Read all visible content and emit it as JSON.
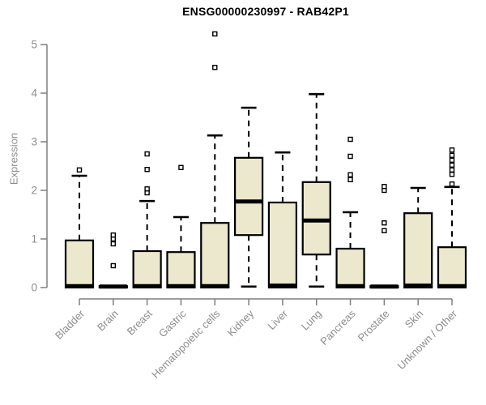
{
  "chart_data": {
    "type": "boxplot",
    "title": "ENSG00000230997 - RAB42P1",
    "ylabel": "Expression",
    "xlabel": "",
    "ylim": [
      0,
      5
    ],
    "yticks": [
      0,
      1,
      2,
      3,
      4,
      5
    ],
    "grid": false,
    "legend": false,
    "categories": [
      "Bladder",
      "Brain",
      "Breast",
      "Gastric",
      "Hematopoietic cells",
      "Kidney",
      "Liver",
      "Lung",
      "Pancreas",
      "Prostate",
      "Skin",
      "Unknown / Other"
    ],
    "series": [
      {
        "category": "Bladder",
        "whisker_low": 0,
        "q1": 0,
        "median": 0.03,
        "q3": 0.97,
        "whisker_high": 2.3,
        "outliers": [
          2.42
        ]
      },
      {
        "category": "Brain",
        "whisker_low": 0,
        "q1": 0,
        "median": 0.02,
        "q3": 0.03,
        "whisker_high": 0.03,
        "outliers": [
          0.45,
          0.9,
          1.0,
          1.08
        ]
      },
      {
        "category": "Breast",
        "whisker_low": 0,
        "q1": 0,
        "median": 0.03,
        "q3": 0.75,
        "whisker_high": 1.78,
        "outliers": [
          1.95,
          2.03,
          2.43,
          2.75
        ]
      },
      {
        "category": "Gastric",
        "whisker_low": 0,
        "q1": 0,
        "median": 0.03,
        "q3": 0.73,
        "whisker_high": 1.45,
        "outliers": [
          2.47
        ]
      },
      {
        "category": "Hematopoietic cells",
        "whisker_low": 0,
        "q1": 0,
        "median": 0.03,
        "q3": 1.33,
        "whisker_high": 3.13,
        "outliers": [
          4.53,
          5.22
        ]
      },
      {
        "category": "Kidney",
        "whisker_low": 0.02,
        "q1": 1.08,
        "median": 1.77,
        "q3": 2.67,
        "whisker_high": 3.7,
        "outliers": []
      },
      {
        "category": "Liver",
        "whisker_low": 0,
        "q1": 0,
        "median": 0.04,
        "q3": 1.75,
        "whisker_high": 2.78,
        "outliers": []
      },
      {
        "category": "Lung",
        "whisker_low": 0.02,
        "q1": 0.68,
        "median": 1.38,
        "q3": 2.17,
        "whisker_high": 3.98,
        "outliers": []
      },
      {
        "category": "Pancreas",
        "whisker_low": 0,
        "q1": 0,
        "median": 0.03,
        "q3": 0.8,
        "whisker_high": 1.55,
        "outliers": [
          2.22,
          2.32,
          2.7,
          3.05
        ]
      },
      {
        "category": "Prostate",
        "whisker_low": 0,
        "q1": 0,
        "median": 0.02,
        "q3": 0.03,
        "whisker_high": 0.03,
        "outliers": [
          1.17,
          1.33,
          2.0,
          2.08
        ]
      },
      {
        "category": "Skin",
        "whisker_low": 0,
        "q1": 0,
        "median": 0.04,
        "q3": 1.53,
        "whisker_high": 2.05,
        "outliers": []
      },
      {
        "category": "Unknown / Other",
        "whisker_low": 0,
        "q1": 0,
        "median": 0.03,
        "q3": 0.83,
        "whisker_high": 2.07,
        "outliers": [
          2.13,
          2.33,
          2.42,
          2.52,
          2.62,
          2.72,
          2.83
        ]
      }
    ],
    "colors": {
      "box_fill": "#ece8cd",
      "box_stroke": "#000000",
      "median": "#000000",
      "whisker": "#000000",
      "outlier_stroke": "#000000",
      "axis": "#7f7f7f",
      "tick_label": "#8c8c8c",
      "title": "#000000",
      "background": "#ffffff"
    }
  }
}
